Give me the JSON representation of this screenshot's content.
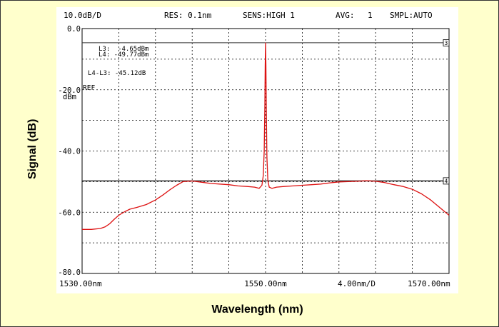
{
  "figure": {
    "ylabel": "Signal (dB)",
    "xlabel": "Wavelength (nm)"
  },
  "header": {
    "scale": "10.0dB/D",
    "res": "RES: 0.1nm",
    "sens": "SENS:HIGH 1",
    "avg_label": "AVG:",
    "avg_value": "1",
    "smpl": "SMPL:AUTO"
  },
  "markers": {
    "l3": "L3:  -4.65dBm",
    "l4": "L4: -49.77dBm",
    "l4_l3": "L4-L3: -45.12dB",
    "line3_tag": "3",
    "line4_tag": "4"
  },
  "ref": {
    "label": "REF",
    "unit": "dBm"
  },
  "chart_data": {
    "type": "line",
    "xlabel": "Wavelength (nm)",
    "ylabel": "Signal (dB)",
    "xlim": [
      1530,
      1570
    ],
    "ylim": [
      -80,
      0
    ],
    "grid": true,
    "y_ticks": [
      "0.0",
      "-20.0",
      "-40.0",
      "-60.0",
      "-80.0"
    ],
    "x_tick_labels": {
      "left": "1530.00nm",
      "center": "1550.00nm",
      "span": "4.00nm/D",
      "right": "1570.00nm"
    },
    "marker_lines": [
      {
        "name": "L3",
        "value": -4.65
      },
      {
        "name": "L4",
        "value": -49.77
      }
    ],
    "series": [
      {
        "color": "#dd1111",
        "x": [
          1530.0,
          1531.0,
          1532.0,
          1532.5,
          1533.0,
          1533.5,
          1534.0,
          1534.6,
          1535.2,
          1536.0,
          1537.0,
          1538.0,
          1538.8,
          1539.6,
          1540.3,
          1541.0,
          1542.0,
          1543.0,
          1544.0,
          1545.0,
          1546.0,
          1547.0,
          1548.0,
          1548.8,
          1549.3,
          1549.6,
          1549.75,
          1549.85,
          1549.92,
          1549.96,
          1550.0,
          1550.04,
          1550.08,
          1550.15,
          1550.25,
          1550.4,
          1550.7,
          1551.2,
          1552.0,
          1553.0,
          1554.0,
          1555.0,
          1556.0,
          1557.0,
          1558.0,
          1559.0,
          1560.0,
          1561.0,
          1562.0,
          1563.0,
          1564.0,
          1565.0,
          1566.0,
          1567.0,
          1568.0,
          1569.0,
          1570.0
        ],
        "y": [
          -65.6,
          -65.6,
          -65.3,
          -64.8,
          -63.8,
          -62.3,
          -61.0,
          -59.9,
          -59.0,
          -58.4,
          -57.5,
          -56.0,
          -54.4,
          -52.6,
          -51.2,
          -50.0,
          -49.8,
          -50.2,
          -50.6,
          -50.8,
          -51.0,
          -51.4,
          -51.6,
          -51.8,
          -52.2,
          -51.2,
          -48.0,
          -40.0,
          -25.0,
          -12.0,
          -4.7,
          -12.0,
          -25.0,
          -42.0,
          -49.5,
          -51.8,
          -52.2,
          -51.8,
          -51.6,
          -51.4,
          -51.2,
          -51.0,
          -50.8,
          -50.4,
          -50.1,
          -50.0,
          -49.9,
          -49.7,
          -49.9,
          -50.3,
          -51.0,
          -51.6,
          -52.5,
          -54.0,
          -56.0,
          -58.5,
          -61.0
        ]
      }
    ]
  }
}
